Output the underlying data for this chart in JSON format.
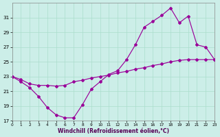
{
  "xlabel": "Windchill (Refroidissement éolien,°C)",
  "bg_color": "#cceee8",
  "grid_color": "#aaddcc",
  "line_color": "#990099",
  "xlim": [
    0,
    23
  ],
  "ylim": [
    17,
    33
  ],
  "yticks": [
    17,
    19,
    21,
    23,
    25,
    27,
    29,
    31
  ],
  "xticks": [
    0,
    1,
    2,
    3,
    4,
    5,
    6,
    7,
    8,
    9,
    10,
    11,
    12,
    13,
    14,
    15,
    16,
    17,
    18,
    19,
    20,
    21,
    22,
    23
  ],
  "line1_x": [
    0,
    1,
    2,
    3,
    4,
    5,
    6,
    7,
    8,
    9,
    10,
    11,
    12,
    13,
    14,
    15,
    16,
    17,
    18,
    19,
    20,
    21,
    22,
    23
  ],
  "line1_y": [
    23.0,
    22.3,
    21.5,
    20.3,
    18.8,
    17.8,
    17.4,
    17.4,
    19.2,
    21.3,
    22.3,
    23.3,
    23.8,
    25.3,
    27.3,
    29.7,
    30.5,
    31.3,
    32.3,
    30.3,
    31.2,
    27.3,
    27.0,
    25.3
  ],
  "line2_x": [
    0,
    1,
    2,
    3,
    4,
    5,
    6,
    7,
    8,
    9,
    10,
    11,
    12,
    13,
    14,
    15,
    16,
    17,
    18,
    19,
    20,
    21,
    22,
    23
  ],
  "line2_y": [
    23.0,
    22.6,
    22.0,
    21.8,
    21.8,
    21.7,
    21.8,
    22.3,
    22.5,
    22.8,
    23.0,
    23.2,
    23.5,
    23.7,
    24.0,
    24.2,
    24.5,
    24.7,
    25.0,
    25.2,
    25.3,
    25.3,
    25.3,
    25.3
  ]
}
